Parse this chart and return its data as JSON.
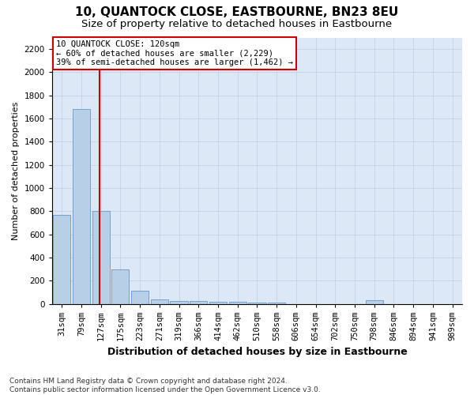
{
  "title": "10, QUANTOCK CLOSE, EASTBOURNE, BN23 8EU",
  "subtitle": "Size of property relative to detached houses in Eastbourne",
  "xlabel": "Distribution of detached houses by size in Eastbourne",
  "ylabel": "Number of detached properties",
  "categories": [
    "31sqm",
    "79sqm",
    "127sqm",
    "175sqm",
    "223sqm",
    "271sqm",
    "319sqm",
    "366sqm",
    "414sqm",
    "462sqm",
    "510sqm",
    "558sqm",
    "606sqm",
    "654sqm",
    "702sqm",
    "750sqm",
    "798sqm",
    "846sqm",
    "894sqm",
    "941sqm",
    "989sqm"
  ],
  "values": [
    770,
    1680,
    800,
    300,
    115,
    40,
    28,
    22,
    18,
    15,
    12,
    8,
    0,
    0,
    0,
    0,
    30,
    0,
    0,
    0,
    0
  ],
  "bar_color": "#b8cfe8",
  "bar_edge_color": "#6699cc",
  "vline_x": 1.95,
  "vline_color": "#cc0000",
  "annotation_line1": "10 QUANTOCK CLOSE: 120sqm",
  "annotation_line2": "← 60% of detached houses are smaller (2,229)",
  "annotation_line3": "39% of semi-detached houses are larger (1,462) →",
  "annotation_box_color": "#cc0000",
  "ylim": [
    0,
    2300
  ],
  "yticks": [
    0,
    200,
    400,
    600,
    800,
    1000,
    1200,
    1400,
    1600,
    1800,
    2000,
    2200
  ],
  "grid_color": "#c8d4e8",
  "background_color": "#dce8f5",
  "footer": "Contains HM Land Registry data © Crown copyright and database right 2024.\nContains public sector information licensed under the Open Government Licence v3.0.",
  "title_fontsize": 11,
  "subtitle_fontsize": 9.5,
  "xlabel_fontsize": 9,
  "ylabel_fontsize": 8,
  "tick_fontsize": 7.5,
  "annotation_fontsize": 7.5,
  "footer_fontsize": 6.5
}
